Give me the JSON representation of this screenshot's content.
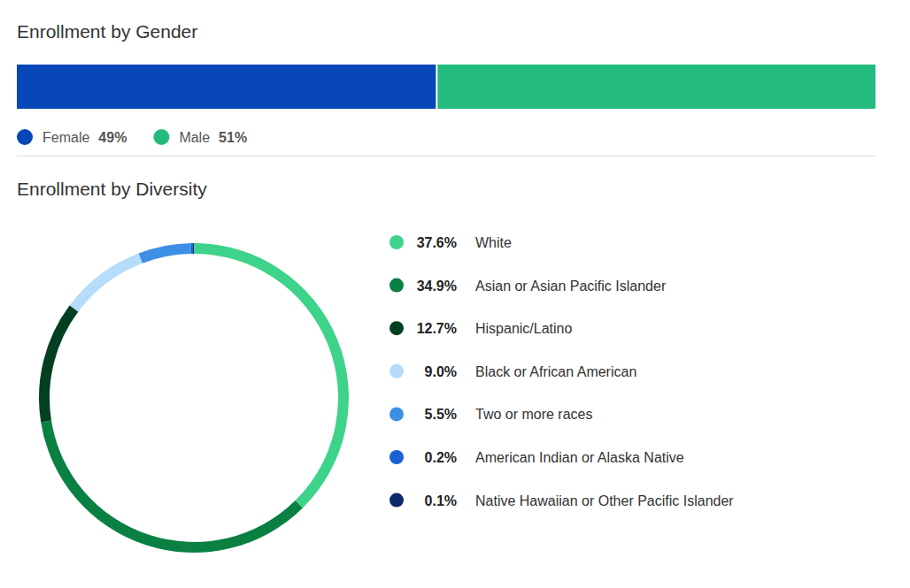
{
  "chart_data": [
    {
      "type": "bar",
      "title": "Enrollment by Gender",
      "orientation": "horizontal",
      "stacked": true,
      "legend": "bottom",
      "tick_labels": false,
      "categories": [
        null
      ],
      "series": [
        {
          "name": "Female",
          "color": "#0747b8",
          "values": [
            49
          ],
          "value_labels": [
            "49%"
          ]
        },
        {
          "name": "Male",
          "color": "#24bc7e",
          "values": [
            51
          ],
          "value_labels": [
            "51%"
          ]
        }
      ]
    },
    {
      "type": "donut",
      "title": "Enrollment by Diversity",
      "legend": "right",
      "categories": [
        "White",
        "Asian or Asian Pacific Islander",
        "Hispanic/Latino",
        "Black or African American",
        "Two or more races",
        "American Indian or Alaska Native",
        "Native Hawaiian or Other Pacific Islander"
      ],
      "values": [
        37.6,
        34.9,
        12.7,
        9.0,
        5.5,
        0.2,
        0.1
      ],
      "value_labels": [
        "37.6%",
        "34.9%",
        "12.7%",
        "9.0%",
        "5.5%",
        "0.2%",
        "0.1%"
      ],
      "colors": [
        "#3dd38b",
        "#0a8043",
        "#033f22",
        "#b5dcfa",
        "#3d8fe6",
        "#1b61d1",
        "#0b2a6c"
      ]
    }
  ]
}
